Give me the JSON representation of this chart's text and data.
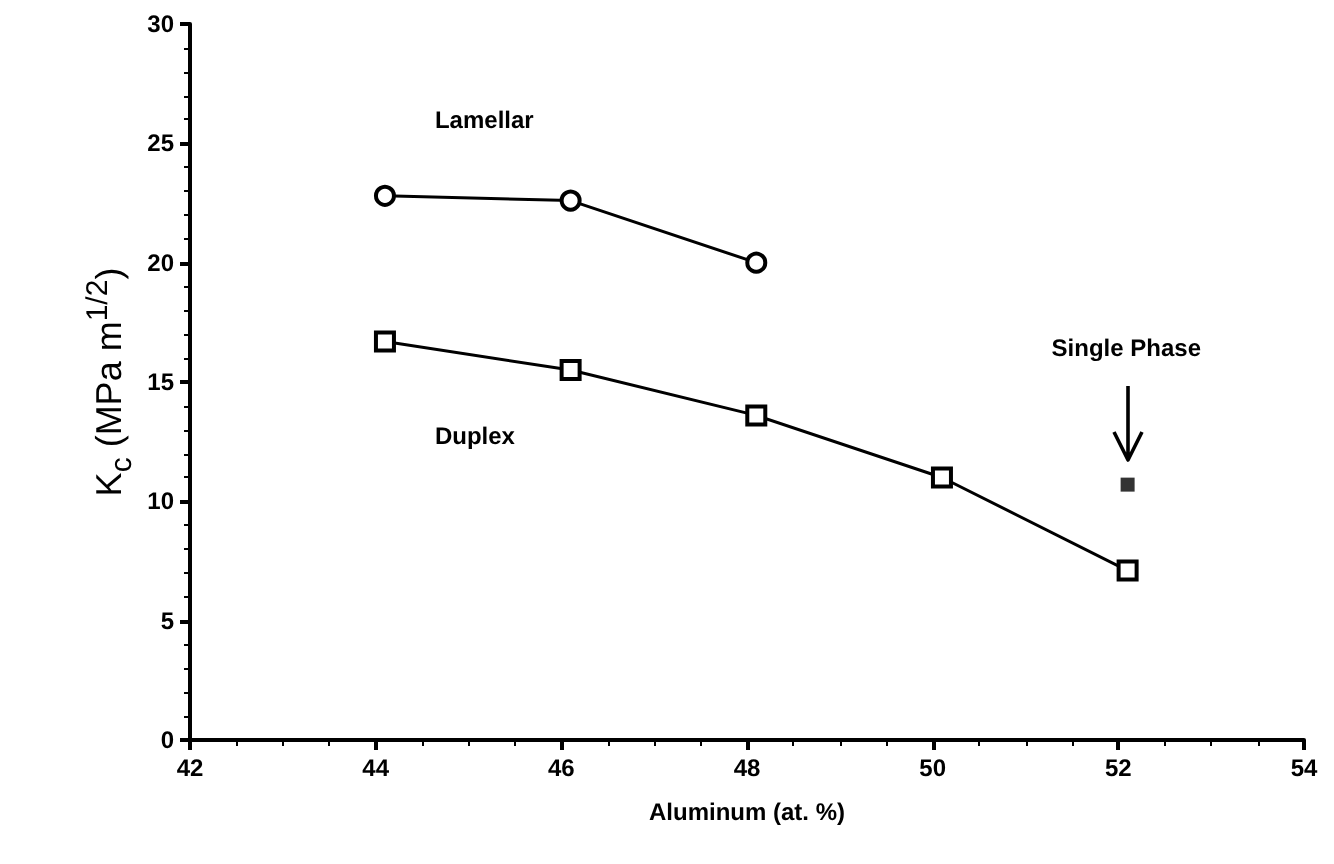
{
  "chart_data": {
    "type": "line",
    "xlabel": "Aluminum (at. %)",
    "ylabel": "K$_{c}$ (MPa m$^{1/2}$)",
    "xlim": [
      42,
      54
    ],
    "xticks": [
      42,
      44,
      46,
      48,
      50,
      52,
      54
    ],
    "ylim": [
      0,
      30
    ],
    "yticks": [
      0,
      5,
      10,
      15,
      20,
      25,
      30
    ],
    "grid": false,
    "legend": false,
    "line_style": "solid",
    "series": [
      {
        "name": "Lamellar",
        "color": "#000000",
        "marker": "circle",
        "x": [
          44.1,
          46.1,
          48.1
        ],
        "values": [
          22.8,
          22.6,
          20.0
        ]
      },
      {
        "name": "Duplex",
        "color": "#000000",
        "marker": "square",
        "x": [
          44.1,
          46.1,
          48.1,
          50.1,
          52.1
        ],
        "values": [
          16.7,
          15.5,
          13.6,
          11.0,
          7.1
        ]
      },
      {
        "type": "scatter",
        "color": "#000000",
        "marker": "square",
        "x": [
          52.1
        ],
        "values": [
          10.7
        ]
      }
    ],
    "annotations": [
      "Single Phase"
    ]
  }
}
